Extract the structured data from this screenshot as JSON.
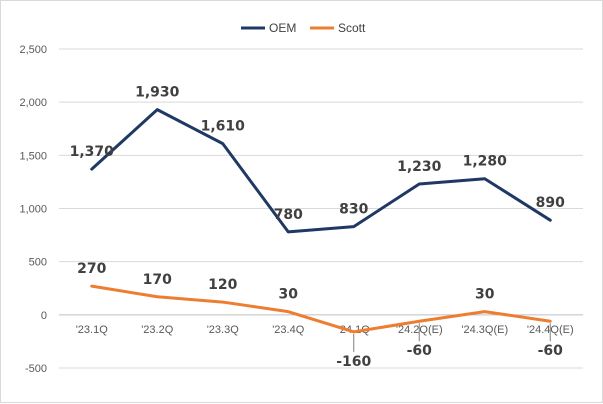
{
  "chart_data": {
    "type": "line",
    "title": "",
    "xlabel": "",
    "ylabel": "",
    "categories": [
      "'23.1Q",
      "'23.2Q",
      "'23.3Q",
      "'23.4Q",
      "'24.1Q",
      "'24.2Q(E)",
      "'24.3Q(E)",
      "'24.4Q(E)"
    ],
    "ylim": [
      -500,
      2500
    ],
    "yticks": [
      -500,
      0,
      500,
      1000,
      1500,
      2000,
      2500
    ],
    "ytick_labels": [
      "-500",
      "0",
      "500",
      "1,000",
      "1,500",
      "2,000",
      "2,500"
    ],
    "grid": true,
    "legend_position": "top-center",
    "series": [
      {
        "name": "OEM",
        "color": "#1f3864",
        "values": [
          1370,
          1930,
          1610,
          780,
          830,
          1230,
          1280,
          890
        ],
        "labels": [
          "1,370",
          "1,930",
          "1,610",
          "780",
          "830",
          "1,230",
          "1,280",
          "890"
        ]
      },
      {
        "name": "Scott",
        "color": "#ed7d31",
        "values": [
          270,
          170,
          120,
          30,
          -160,
          -60,
          30,
          -60
        ],
        "labels": [
          "270",
          "170",
          "120",
          "30",
          "-160",
          "-60",
          "30",
          "-60"
        ]
      }
    ]
  }
}
